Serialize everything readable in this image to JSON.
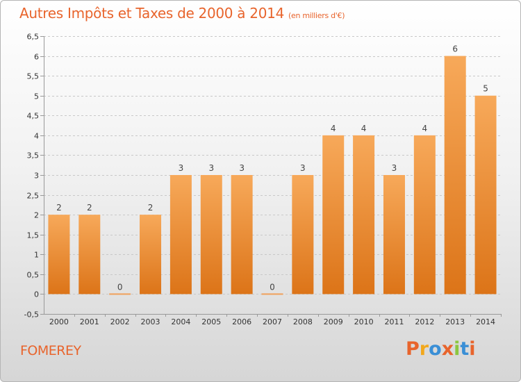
{
  "title": "Autres Impôts et Taxes de 2000 à 2014",
  "unit_label": "(en milliers d'€)",
  "place": "FOMEREY",
  "logo": {
    "text": "Proxiti",
    "colors": [
      "#e8642c",
      "#f2a81d",
      "#3a8fd6",
      "#e8642c",
      "#8cc63f",
      "#3a8fd6",
      "#e8642c"
    ]
  },
  "colors": {
    "bar_top": "#f7a95a",
    "bar_bottom": "#dc7418",
    "zero_bar": "#f0a05a",
    "title": "#e8642c",
    "axis": "#999999",
    "grid": "#c8c8c8"
  },
  "chart_data": {
    "type": "bar",
    "categories": [
      "2000",
      "2001",
      "2002",
      "2003",
      "2004",
      "2005",
      "2006",
      "2007",
      "2008",
      "2009",
      "2010",
      "2011",
      "2012",
      "2013",
      "2014"
    ],
    "values": [
      2,
      2,
      0,
      2,
      3,
      3,
      3,
      0,
      3,
      4,
      4,
      3,
      4,
      6,
      5
    ],
    "value_labels": [
      "2",
      "2",
      "0",
      "2",
      "3",
      "3",
      "3",
      "0",
      "3",
      "4",
      "4",
      "3",
      "4",
      "6",
      "5"
    ],
    "ylim": [
      -0.5,
      6.5
    ],
    "yticks": [
      -0.5,
      0,
      0.5,
      1,
      1.5,
      2,
      2.5,
      3,
      3.5,
      4,
      4.5,
      5,
      5.5,
      6,
      6.5
    ],
    "ytick_labels": [
      "-0,5",
      "0",
      "0,5",
      "1",
      "1,5",
      "2",
      "2,5",
      "3",
      "3,5",
      "4",
      "4,5",
      "5",
      "5,5",
      "6",
      "6,5"
    ],
    "grid": true,
    "title": "Autres Impôts et Taxes de 2000 à 2014",
    "xlabel": "",
    "ylabel": ""
  }
}
